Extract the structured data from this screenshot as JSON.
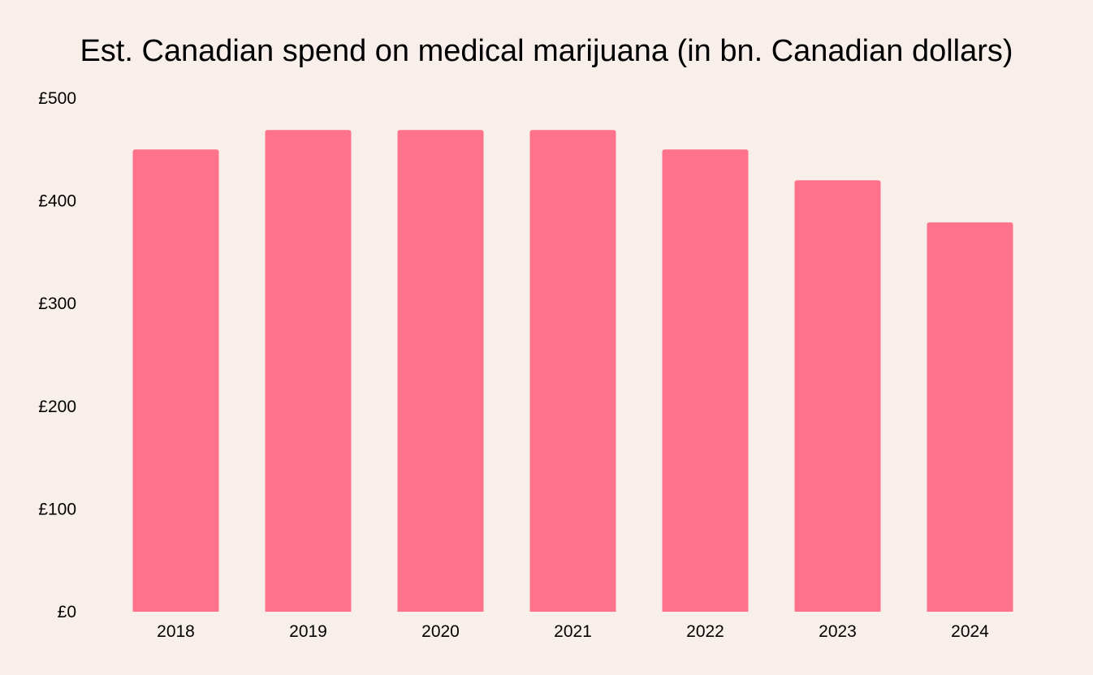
{
  "colors": {
    "background": "#f9efea",
    "bar": "#ff728b",
    "text": "#000000"
  },
  "chart_data": {
    "type": "bar",
    "title": "Est. Canadian spend on medical marijuana (in bn. Canadian dollars)",
    "xlabel": "",
    "ylabel": "",
    "categories": [
      "2018",
      "2019",
      "2020",
      "2021",
      "2022",
      "2023",
      "2024"
    ],
    "values": [
      450,
      469,
      469,
      469,
      450,
      420,
      379
    ],
    "ylim": [
      0,
      500
    ],
    "yticks": [
      0,
      100,
      200,
      300,
      400,
      500
    ],
    "ytick_labels": [
      "£0",
      "£100",
      "£200",
      "£300",
      "£400",
      "£500"
    ],
    "grid": false,
    "legend": "none"
  }
}
